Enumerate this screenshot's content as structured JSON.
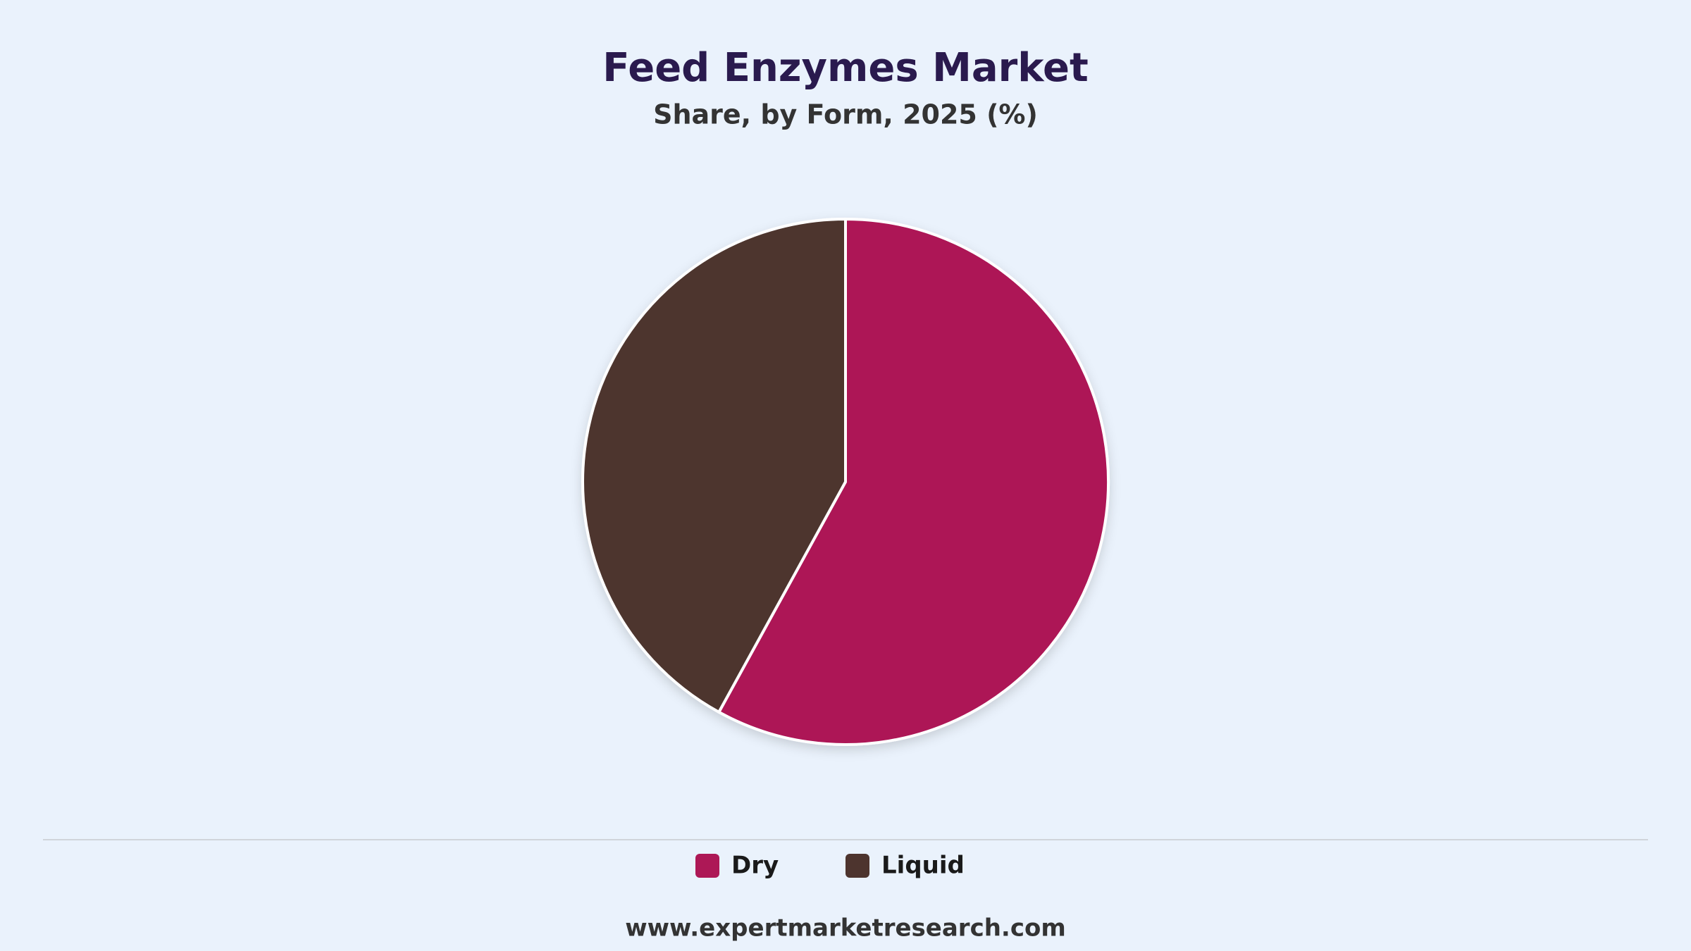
{
  "chart_data": {
    "type": "pie",
    "title": "Feed Enzymes Market",
    "subtitle": "Share, by Form, 2025 (%)",
    "categories": [
      "Dry",
      "Liquid"
    ],
    "values": [
      58,
      42
    ],
    "colors": [
      "#ad1856",
      "#4d342e"
    ],
    "legend": "bottom",
    "source": "www.expertmarketresearch.com"
  }
}
